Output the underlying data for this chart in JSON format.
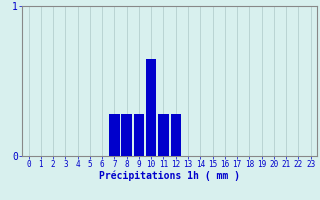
{
  "hours": [
    0,
    1,
    2,
    3,
    4,
    5,
    6,
    7,
    8,
    9,
    10,
    11,
    12,
    13,
    14,
    15,
    16,
    17,
    18,
    19,
    20,
    21,
    22,
    23
  ],
  "values": [
    0,
    0,
    0,
    0,
    0,
    0,
    0,
    0.28,
    0.28,
    0.28,
    0.65,
    0.28,
    0.28,
    0,
    0,
    0,
    0,
    0,
    0,
    0,
    0,
    0,
    0,
    0
  ],
  "bar_color": "#0000cc",
  "background_color": "#d8f0ee",
  "plot_bg_color": "#d8f0ee",
  "grid_color": "#aec8c8",
  "spine_color": "#888888",
  "xlabel": "Précipitations 1h ( mm )",
  "xlabel_color": "#0000cc",
  "tick_color": "#0000cc",
  "ylim": [
    0,
    1.0
  ],
  "yticks": [
    0,
    1
  ],
  "xlim": [
    -0.5,
    23.5
  ],
  "bar_width": 0.85,
  "tick_fontsize": 5.5,
  "xlabel_fontsize": 7,
  "ylabel_fontsize": 7
}
